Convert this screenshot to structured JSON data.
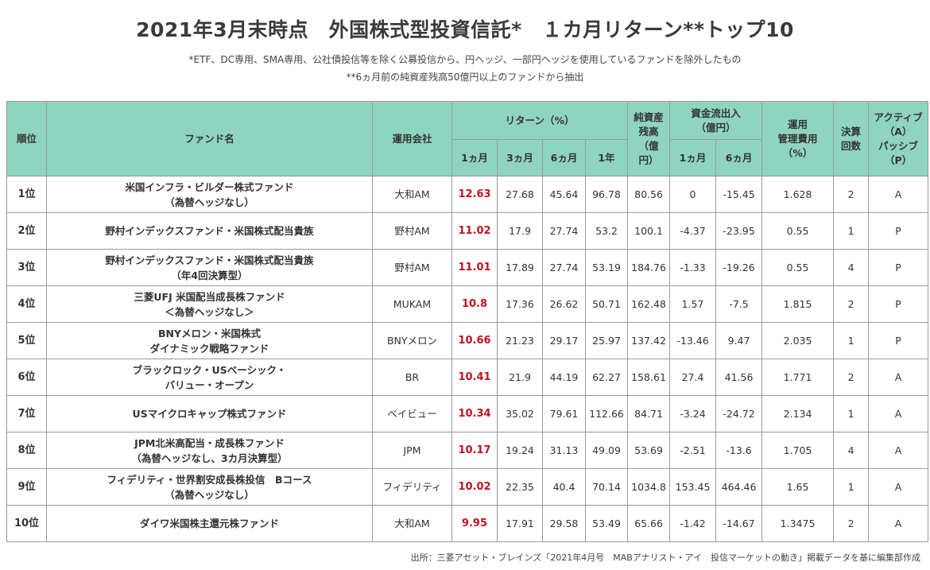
{
  "title": "2021年3月末時点　外国株式型投資信託*　１カ月リターン**トップ10",
  "notes": [
    "*ETF、DC専用、SMA専用、公社債投信等を除く公募投信から、円ヘッジ、一部円ヘッジを使用しているファンドを除外したもの",
    "**6ヵ月前の純資産残高50億円以上のファンドから抽出"
  ],
  "header": {
    "rank": "順位",
    "fund": "ファンド名",
    "company": "運用会社",
    "return_group": "リターン（%）",
    "ret_1m": "1ヵ月",
    "ret_3m": "3ヵ月",
    "ret_6m": "6ヵ月",
    "ret_1y": "1年",
    "nav_l1": "純資産",
    "nav_l2": "残高",
    "nav_l3": "（億",
    "nav_l4": "円）",
    "flow_l1": "資金流出入",
    "flow_l2": "（億円）",
    "flow_1m": "1ヵ月",
    "flow_6m": "6ヵ月",
    "fee_l1": "運用",
    "fee_l2": "管理費用",
    "fee_l3": "（%）",
    "settle_l1": "決算",
    "settle_l2": "回数",
    "ap_l1": "アクティブ",
    "ap_l2": "（A）",
    "ap_l3": "パッシブ",
    "ap_l4": "（P）"
  },
  "rows": [
    {
      "rank": "1位",
      "name1": "米国インフラ・ビルダー株式ファンド",
      "name2": "（為替ヘッジなし）",
      "company": "大和AM",
      "r1m": "12.63",
      "r3m": "27.68",
      "r6m": "45.64",
      "r1y": "96.78",
      "nav": "80.56",
      "f1m": "0",
      "f6m": "-15.45",
      "fee": "1.628",
      "settle": "2",
      "ap": "A"
    },
    {
      "rank": "2位",
      "name1": "野村インデックスファンド・米国株式配当貴族",
      "name2": "",
      "company": "野村AM",
      "r1m": "11.02",
      "r3m": "17.9",
      "r6m": "27.74",
      "r1y": "53.2",
      "nav": "100.1",
      "f1m": "-4.37",
      "f6m": "-23.95",
      "fee": "0.55",
      "settle": "1",
      "ap": "P"
    },
    {
      "rank": "3位",
      "name1": "野村インデックスファンド・米国株式配当貴族",
      "name2": "（年4回決算型）",
      "company": "野村AM",
      "r1m": "11.01",
      "r3m": "17.89",
      "r6m": "27.74",
      "r1y": "53.19",
      "nav": "184.76",
      "f1m": "-1.33",
      "f6m": "-19.26",
      "fee": "0.55",
      "settle": "4",
      "ap": "P"
    },
    {
      "rank": "4位",
      "name1": "三菱UFJ 米国配当成長株ファンド",
      "name2": "＜為替ヘッジなし＞",
      "company": "MUKAM",
      "r1m": "10.8",
      "r3m": "17.36",
      "r6m": "26.62",
      "r1y": "50.71",
      "nav": "162.48",
      "f1m": "1.57",
      "f6m": "-7.5",
      "fee": "1.815",
      "settle": "2",
      "ap": "P"
    },
    {
      "rank": "5位",
      "name1": "BNYメロン・米国株式",
      "name2": "ダイナミック戦略ファンド",
      "company": "BNYメロン",
      "r1m": "10.66",
      "r3m": "21.23",
      "r6m": "29.17",
      "r1y": "25.97",
      "nav": "137.42",
      "f1m": "-13.46",
      "f6m": "9.47",
      "fee": "2.035",
      "settle": "1",
      "ap": "P"
    },
    {
      "rank": "6位",
      "name1": "ブラックロック・USベーシック・",
      "name2": "バリュー・オープン",
      "company": "BR",
      "r1m": "10.41",
      "r3m": "21.9",
      "r6m": "44.19",
      "r1y": "62.27",
      "nav": "158.61",
      "f1m": "27.4",
      "f6m": "41.56",
      "fee": "1.771",
      "settle": "2",
      "ap": "A"
    },
    {
      "rank": "7位",
      "name1": "USマイクロキャップ株式ファンド",
      "name2": "",
      "company": "ベイビュー",
      "r1m": "10.34",
      "r3m": "35.02",
      "r6m": "79.61",
      "r1y": "112.66",
      "nav": "84.71",
      "f1m": "-3.24",
      "f6m": "-24.72",
      "fee": "2.134",
      "settle": "1",
      "ap": "A"
    },
    {
      "rank": "8位",
      "name1": "JPM北米高配当・成長株ファンド",
      "name2": "（為替ヘッジなし、3カ月決算型）",
      "company": "JPM",
      "r1m": "10.17",
      "r3m": "19.24",
      "r6m": "31.13",
      "r1y": "49.09",
      "nav": "53.69",
      "f1m": "-2.51",
      "f6m": "-13.6",
      "fee": "1.705",
      "settle": "4",
      "ap": "A"
    },
    {
      "rank": "9位",
      "name1": "フィデリティ・世界割安成長株投信　Bコース",
      "name2": "（為替ヘッジなし）",
      "company": "フィデリティ",
      "r1m": "10.02",
      "r3m": "22.35",
      "r6m": "40.4",
      "r1y": "70.14",
      "nav": "1034.8",
      "f1m": "153.45",
      "f6m": "464.46",
      "fee": "1.65",
      "settle": "1",
      "ap": "A"
    },
    {
      "rank": "10位",
      "name1": "ダイワ米国株主還元株ファンド",
      "name2": "",
      "company": "大和AM",
      "r1m": "9.95",
      "r3m": "17.91",
      "r6m": "29.58",
      "r1y": "53.49",
      "nav": "65.66",
      "f1m": "-1.42",
      "f6m": "-14.67",
      "fee": "1.3475",
      "settle": "2",
      "ap": "A"
    }
  ],
  "source": "出所：三菱アセット・ブレインズ「2021年4月号　MABアナリスト・アイ　投信マーケットの動き」掲載データを基に編集部作成",
  "colors": {
    "header_bg": "#8fd4c0",
    "highlight": "#c1121f",
    "border": "#9a9a9a"
  }
}
